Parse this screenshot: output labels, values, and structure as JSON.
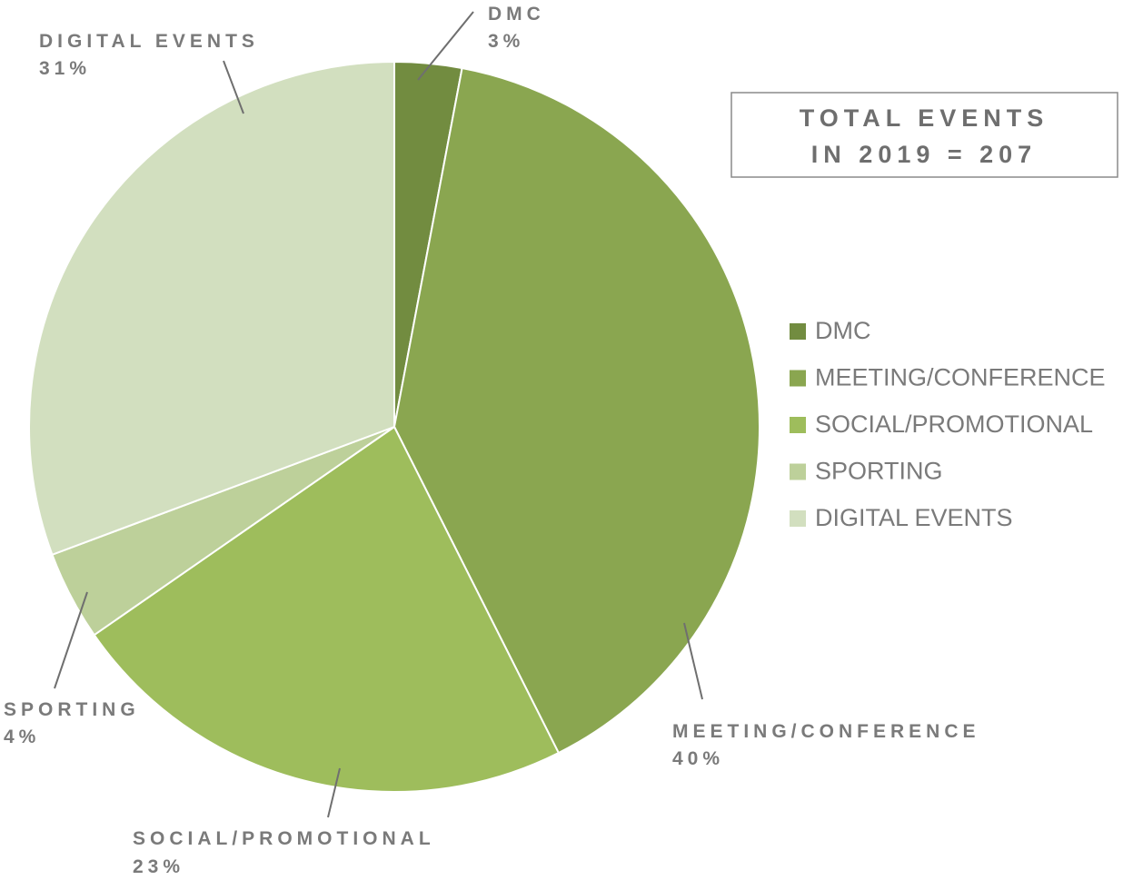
{
  "chart_data": {
    "type": "pie",
    "start_angle_deg": 0,
    "direction": "clockwise",
    "slices": [
      {
        "label": "DMC",
        "value": 3,
        "color": "#728c40",
        "callout_name": "DMC",
        "callout_pct": "3%"
      },
      {
        "label": "MEETING/CONFERENCE",
        "value": 40,
        "color": "#8aa650",
        "callout_name": "MEETING/CONFERENCE",
        "callout_pct": "40%"
      },
      {
        "label": "SOCIAL/PROMOTIONAL",
        "value": 23,
        "color": "#9ebd5c",
        "callout_name": "SOCIAL/PROMOTIONAL",
        "callout_pct": "23%"
      },
      {
        "label": "SPORTING",
        "value": 4,
        "color": "#bdd09a",
        "callout_name": "SPORTING",
        "callout_pct": "4%"
      },
      {
        "label": "DIGITAL EVENTS",
        "value": 31,
        "color": "#d2dfbf",
        "callout_name": "DIGITAL EVENTS",
        "callout_pct": "31%"
      }
    ],
    "legend": {
      "position": "right",
      "items": [
        "DMC",
        "MEETING/CONFERENCE",
        "SOCIAL/PROMOTIONAL",
        "SPORTING",
        "DIGITAL EVENTS"
      ]
    },
    "total_box": {
      "line1": "TOTAL EVENTS",
      "line2": "IN 2019 = 207"
    }
  }
}
